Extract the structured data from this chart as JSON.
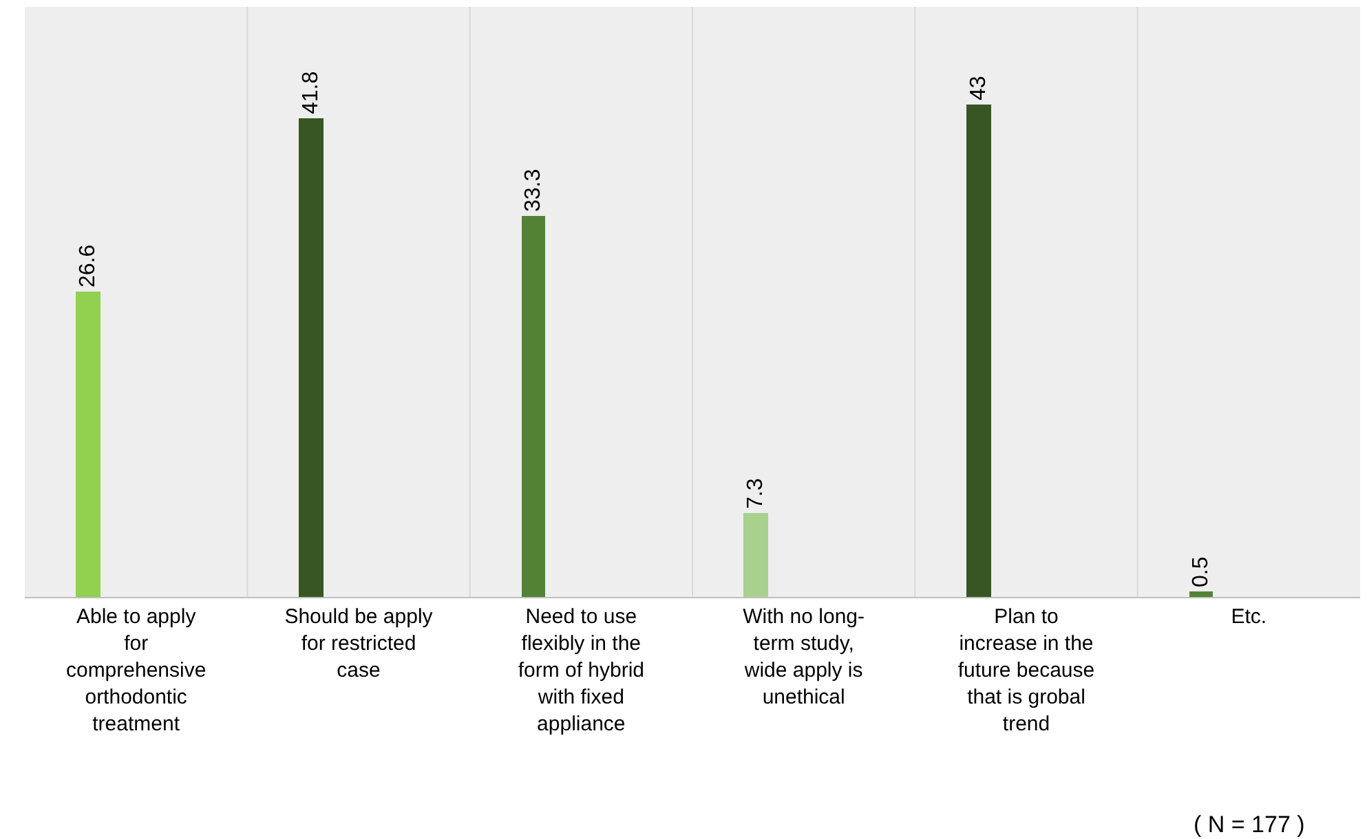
{
  "chart_data": {
    "type": "bar",
    "categories": [
      "Able to apply for comprehensive orthodontic treatment",
      "Should be apply for restricted case",
      "Need to use flexibly in the form of hybrid with fixed appliance",
      "With no long-term study, wide apply is unethical",
      "Plan to increase in the future because that is grobal trend",
      "Etc."
    ],
    "values": [
      26.6,
      41.8,
      33.3,
      7.3,
      43,
      0.5
    ],
    "colors": [
      "#92d050",
      "#375623",
      "#548235",
      "#a9d18e",
      "#375623",
      "#548235"
    ],
    "ylim": [
      0,
      51.5
    ],
    "data_labels": true,
    "grid": "x",
    "legend": false,
    "annotations": [
      "( N = 177 )"
    ]
  }
}
